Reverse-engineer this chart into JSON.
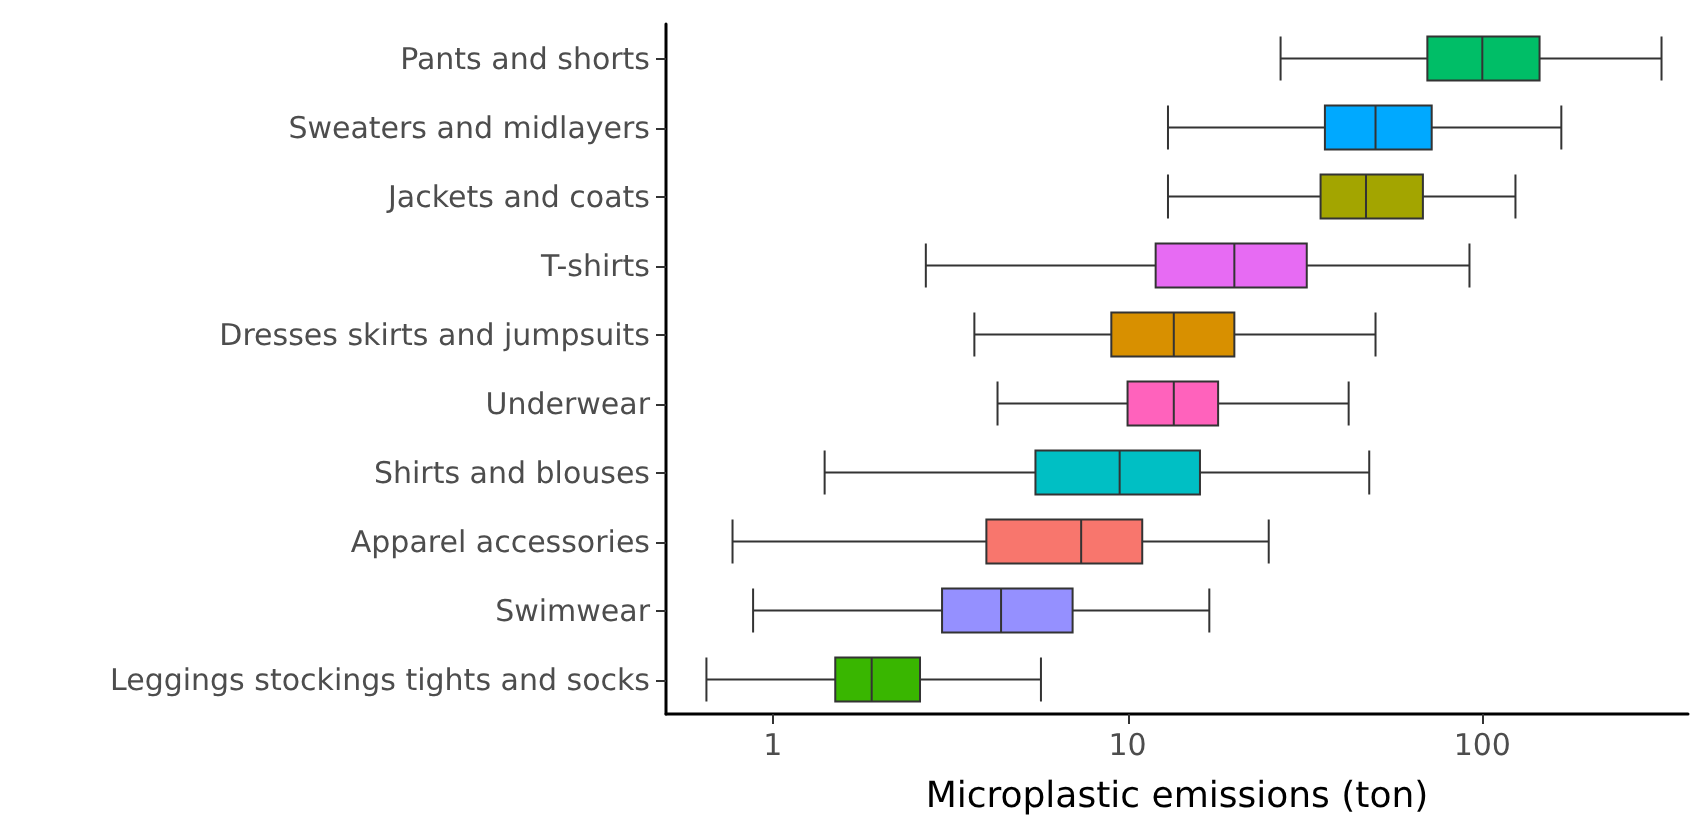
{
  "chart_data": {
    "type": "box",
    "orientation": "horizontal",
    "log": "x",
    "grid": false,
    "xlabel": "Microplastic emissions (ton)",
    "categories": [
      "Pants and shorts",
      "Sweaters and midlayers",
      "Jackets and coats",
      "T-shirts",
      "Dresses skirts and jumpsuits",
      "Underwear",
      "Shirts and blouses",
      "Apparel accessories",
      "Swimwear",
      "Leggings stockings tights and socks"
    ],
    "colors": [
      "#00be67",
      "#00a9ff",
      "#a3a500",
      "#e76bf3",
      "#d89000",
      "#ff62bc",
      "#00bfc4",
      "#f8766d",
      "#9590ff",
      "#39b600"
    ],
    "boxes": [
      {
        "low": 27,
        "q1": 70,
        "median": 100,
        "q3": 145,
        "high": 320
      },
      {
        "low": 13,
        "q1": 36,
        "median": 50,
        "q3": 72,
        "high": 167
      },
      {
        "low": 13,
        "q1": 35,
        "median": 47,
        "q3": 68,
        "high": 124
      },
      {
        "low": 2.7,
        "q1": 12,
        "median": 20,
        "q3": 32,
        "high": 92
      },
      {
        "low": 3.7,
        "q1": 9,
        "median": 13.5,
        "q3": 20,
        "high": 50
      },
      {
        "low": 4.3,
        "q1": 10,
        "median": 13.5,
        "q3": 18,
        "high": 42
      },
      {
        "low": 1.4,
        "q1": 5.5,
        "median": 9.5,
        "q3": 16,
        "high": 48
      },
      {
        "low": 0.77,
        "q1": 4,
        "median": 7.4,
        "q3": 11,
        "high": 25
      },
      {
        "low": 0.88,
        "q1": 3,
        "median": 4.4,
        "q3": 7,
        "high": 17
      },
      {
        "low": 0.65,
        "q1": 1.5,
        "median": 1.9,
        "q3": 2.6,
        "high": 5.7
      }
    ],
    "xlim": [
      0.5,
      380
    ],
    "xticks": [
      1,
      10,
      100
    ]
  }
}
